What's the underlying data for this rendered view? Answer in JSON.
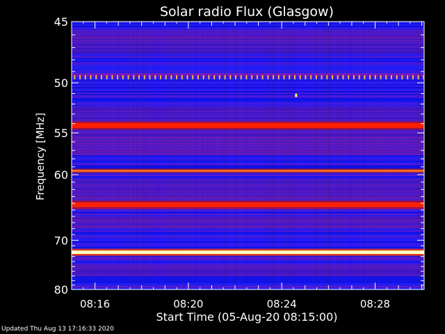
{
  "chart_data": {
    "type": "heatmap",
    "title": "Solar radio Flux (Glasgow)",
    "xlabel": "Start Time (05-Aug-20 08:15:00)",
    "ylabel": "Frequency [MHz]",
    "x_ticks": [
      "08:16",
      "08:20",
      "08:24",
      "08:28"
    ],
    "x_tick_minutes": [
      16,
      20,
      24,
      28
    ],
    "x_range_minutes": [
      15.0,
      30.1
    ],
    "y_ticks": [
      45,
      50,
      55,
      60,
      70,
      80
    ],
    "y_range": [
      45,
      80
    ],
    "y_scale": "reciprocal",
    "bands": [
      {
        "freq": 49.5,
        "level": "dotted-yellow"
      },
      {
        "freq": 54.2,
        "level": "red"
      },
      {
        "freq": 59.5,
        "level": "orange"
      },
      {
        "freq": 64.2,
        "level": "red"
      },
      {
        "freq": 72.2,
        "level": "white-yellow"
      }
    ],
    "point_burst": {
      "time_minutes": 24.6,
      "freq": 51.2
    },
    "colors": {
      "background": "#000000",
      "low": "#1a1aff",
      "mid": "#8a1ab0",
      "high": "#ff2000",
      "peak": "#ffff80"
    }
  },
  "footer": "Updated Thu Aug 13 17:16:33 2020"
}
